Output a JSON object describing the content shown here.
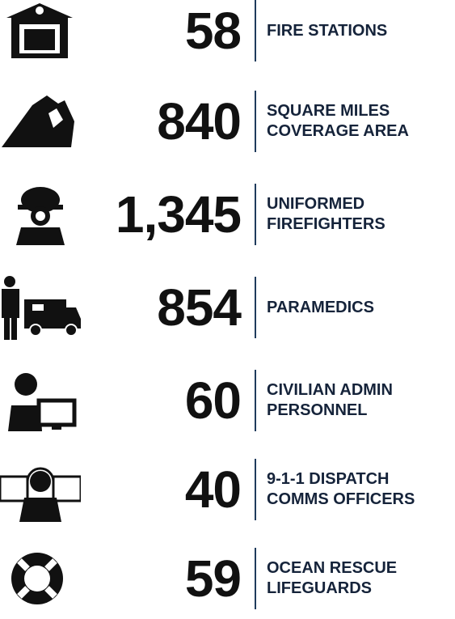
{
  "items": [
    {
      "value": "58",
      "label": [
        "FIRE STATIONS"
      ]
    },
    {
      "value": "840",
      "label": [
        "SQUARE MILES",
        "COVERAGE AREA"
      ]
    },
    {
      "value": "1,345",
      "label": [
        "UNIFORMED",
        "FIREFIGHTERS"
      ]
    },
    {
      "value": "854",
      "label": [
        "PARAMEDICS"
      ]
    },
    {
      "value": "60",
      "label": [
        "CIVILIAN ADMIN",
        "PERSONNEL"
      ]
    },
    {
      "value": "40",
      "label": [
        "9-1-1 DISPATCH",
        "COMMS OFFICERS"
      ]
    },
    {
      "value": "59",
      "label": [
        "OCEAN RESCUE",
        "LIFEGUARDS"
      ]
    }
  ]
}
